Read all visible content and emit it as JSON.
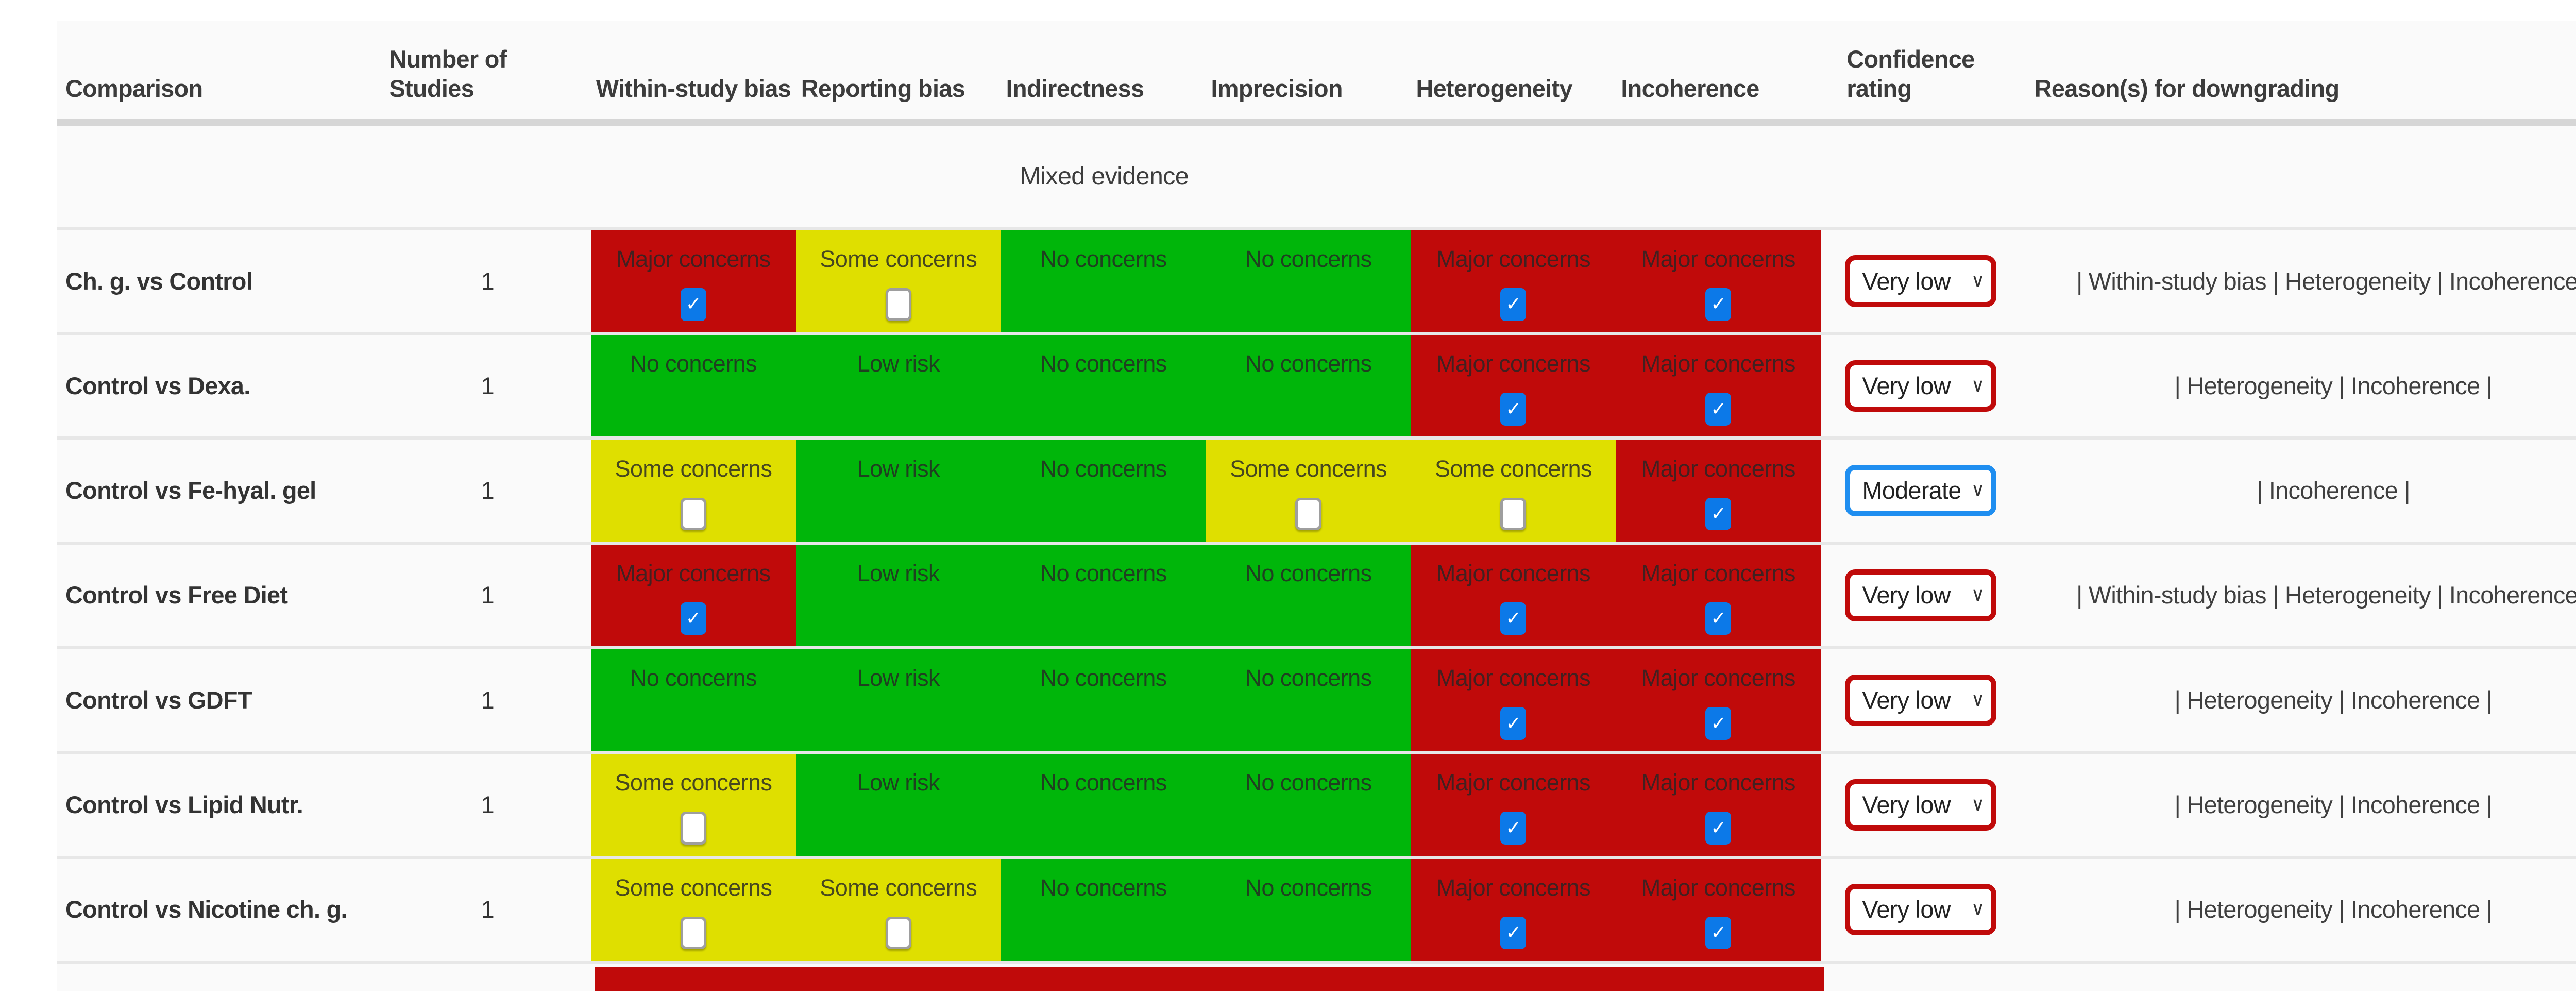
{
  "palette": {
    "green": "#00b60a",
    "yellow": "#dfdf00",
    "red": "#c00a0a",
    "checkbox_blue": "#0c79e8",
    "confidence_border_red": "#c00a0a",
    "confidence_border_blue": "#1f8ef0"
  },
  "table": {
    "columns": [
      "Comparison",
      "Number of Studies",
      "Within-study bias",
      "Reporting bias",
      "Indirectness",
      "Imprecision",
      "Heterogeneity",
      "Incoherence",
      "Confidence rating",
      "Reason(s) for downgrading"
    ],
    "domain_keys": [
      "within-study-bias",
      "reporting-bias",
      "indirectness",
      "imprecision",
      "heterogeneity",
      "incoherence"
    ],
    "section_label": "Mixed evidence",
    "rows": [
      {
        "comparison": "Ch. g. vs Control",
        "n_studies": "1",
        "cells": [
          {
            "label": "Major concerns",
            "color": "red",
            "checkbox": "checked"
          },
          {
            "label": "Some concerns",
            "color": "yellow",
            "checkbox": "unchecked"
          },
          {
            "label": "No concerns",
            "color": "green",
            "checkbox": null
          },
          {
            "label": "No concerns",
            "color": "green",
            "checkbox": null
          },
          {
            "label": "Major concerns",
            "color": "red",
            "checkbox": "checked"
          },
          {
            "label": "Major concerns",
            "color": "red",
            "checkbox": "checked"
          }
        ],
        "confidence": {
          "value": "Very low",
          "border": "red"
        },
        "reasons": "| Within-study bias | Heterogeneity | Incoherence |"
      },
      {
        "comparison": "Control vs Dexa.",
        "n_studies": "1",
        "cells": [
          {
            "label": "No concerns",
            "color": "green",
            "checkbox": null
          },
          {
            "label": "Low risk",
            "color": "green",
            "checkbox": null
          },
          {
            "label": "No concerns",
            "color": "green",
            "checkbox": null
          },
          {
            "label": "No concerns",
            "color": "green",
            "checkbox": null
          },
          {
            "label": "Major concerns",
            "color": "red",
            "checkbox": "checked"
          },
          {
            "label": "Major concerns",
            "color": "red",
            "checkbox": "checked"
          }
        ],
        "confidence": {
          "value": "Very low",
          "border": "red"
        },
        "reasons": "| Heterogeneity | Incoherence |"
      },
      {
        "comparison": "Control vs Fe-hyal. gel",
        "n_studies": "1",
        "cells": [
          {
            "label": "Some concerns",
            "color": "yellow",
            "checkbox": "unchecked"
          },
          {
            "label": "Low risk",
            "color": "green",
            "checkbox": null
          },
          {
            "label": "No concerns",
            "color": "green",
            "checkbox": null
          },
          {
            "label": "Some concerns",
            "color": "yellow",
            "checkbox": "unchecked"
          },
          {
            "label": "Some concerns",
            "color": "yellow",
            "checkbox": "unchecked"
          },
          {
            "label": "Major concerns",
            "color": "red",
            "checkbox": "checked"
          }
        ],
        "confidence": {
          "value": "Moderate",
          "border": "blue"
        },
        "reasons": "| Incoherence |"
      },
      {
        "comparison": "Control vs Free Diet",
        "n_studies": "1",
        "cells": [
          {
            "label": "Major concerns",
            "color": "red",
            "checkbox": "checked"
          },
          {
            "label": "Low risk",
            "color": "green",
            "checkbox": null
          },
          {
            "label": "No concerns",
            "color": "green",
            "checkbox": null
          },
          {
            "label": "No concerns",
            "color": "green",
            "checkbox": null
          },
          {
            "label": "Major concerns",
            "color": "red",
            "checkbox": "checked"
          },
          {
            "label": "Major concerns",
            "color": "red",
            "checkbox": "checked"
          }
        ],
        "confidence": {
          "value": "Very low",
          "border": "red"
        },
        "reasons": "| Within-study bias | Heterogeneity | Incoherence |"
      },
      {
        "comparison": "Control vs GDFT",
        "n_studies": "1",
        "cells": [
          {
            "label": "No concerns",
            "color": "green",
            "checkbox": null
          },
          {
            "label": "Low risk",
            "color": "green",
            "checkbox": null
          },
          {
            "label": "No concerns",
            "color": "green",
            "checkbox": null
          },
          {
            "label": "No concerns",
            "color": "green",
            "checkbox": null
          },
          {
            "label": "Major concerns",
            "color": "red",
            "checkbox": "checked"
          },
          {
            "label": "Major concerns",
            "color": "red",
            "checkbox": "checked"
          }
        ],
        "confidence": {
          "value": "Very low",
          "border": "red"
        },
        "reasons": "| Heterogeneity | Incoherence |"
      },
      {
        "comparison": "Control vs Lipid Nutr.",
        "n_studies": "1",
        "cells": [
          {
            "label": "Some concerns",
            "color": "yellow",
            "checkbox": "unchecked"
          },
          {
            "label": "Low risk",
            "color": "green",
            "checkbox": null
          },
          {
            "label": "No concerns",
            "color": "green",
            "checkbox": null
          },
          {
            "label": "No concerns",
            "color": "green",
            "checkbox": null
          },
          {
            "label": "Major concerns",
            "color": "red",
            "checkbox": "checked"
          },
          {
            "label": "Major concerns",
            "color": "red",
            "checkbox": "checked"
          }
        ],
        "confidence": {
          "value": "Very low",
          "border": "red"
        },
        "reasons": "| Heterogeneity | Incoherence |"
      },
      {
        "comparison": "Control vs Nicotine ch. g.",
        "n_studies": "1",
        "cells": [
          {
            "label": "Some concerns",
            "color": "yellow",
            "checkbox": "unchecked"
          },
          {
            "label": "Some concerns",
            "color": "yellow",
            "checkbox": "unchecked"
          },
          {
            "label": "No concerns",
            "color": "green",
            "checkbox": null
          },
          {
            "label": "No concerns",
            "color": "green",
            "checkbox": null
          },
          {
            "label": "Major concerns",
            "color": "red",
            "checkbox": "checked"
          },
          {
            "label": "Major concerns",
            "color": "red",
            "checkbox": "checked"
          }
        ],
        "confidence": {
          "value": "Very low",
          "border": "red"
        },
        "reasons": "| Heterogeneity | Incoherence |"
      }
    ]
  }
}
